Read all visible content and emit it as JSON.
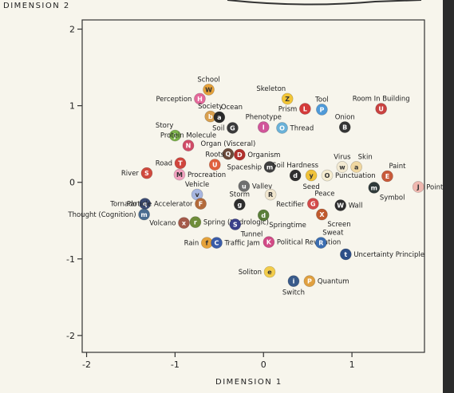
{
  "chart_data": {
    "type": "scatter",
    "xlabel": "DIMENSION 1",
    "ylabel": "DIMENSION 2",
    "xlim": [
      -2.05,
      1.82
    ],
    "ylim": [
      -2.22,
      2.12
    ],
    "x_ticks": [
      -2,
      -1,
      0,
      1
    ],
    "y_ticks": [
      -2,
      -1,
      0,
      1,
      2
    ],
    "x_tick_labels": [
      "-2",
      "-1",
      "0",
      "1"
    ],
    "y_tick_labels": [
      "-2",
      "-1",
      "0",
      "1",
      "2"
    ],
    "grid": false,
    "points": [
      {
        "label": "School",
        "marker": "W",
        "x": -0.62,
        "y": 1.21,
        "color": "#e6a23a",
        "label_pos": "above"
      },
      {
        "label": "Perception",
        "marker": "H",
        "x": -0.72,
        "y": 1.09,
        "color": "#e3689a",
        "label_pos": "left"
      },
      {
        "label": "Society",
        "marker": "b",
        "x": -0.6,
        "y": 0.86,
        "color": "#d9a04f",
        "label_pos": "above"
      },
      {
        "label": "Ocean",
        "marker": "a",
        "x": -0.5,
        "y": 0.85,
        "color": "#2a2a2a",
        "label_pos": "above-right"
      },
      {
        "label": "Skeleton",
        "marker": "Z",
        "x": 0.27,
        "y": 1.09,
        "color": "#f2c536",
        "label_pos": "above-left"
      },
      {
        "label": "Tool",
        "marker": "P",
        "x": 0.66,
        "y": 0.95,
        "color": "#4f9ad8",
        "label_pos": "above"
      },
      {
        "label": "Prism",
        "marker": "L",
        "x": 0.47,
        "y": 0.96,
        "color": "#d43a3a",
        "label_pos": "left"
      },
      {
        "label": "Room In Building",
        "marker": "U",
        "x": 1.33,
        "y": 0.96,
        "color": "#c94240",
        "label_pos": "above"
      },
      {
        "label": "Phenotype",
        "marker": "I",
        "x": 0.0,
        "y": 0.72,
        "color": "#d1559a",
        "label_pos": "above"
      },
      {
        "label": "Thread",
        "marker": "O",
        "x": 0.21,
        "y": 0.71,
        "color": "#6ab1d8",
        "label_pos": "right"
      },
      {
        "label": "Onion",
        "marker": "B",
        "x": 0.92,
        "y": 0.72,
        "color": "#353535",
        "label_pos": "above"
      },
      {
        "label": "Story",
        "marker": "j",
        "x": -1.0,
        "y": 0.61,
        "color": "#7bb04a",
        "label_pos": "above-left"
      },
      {
        "label": "Protein Molecule",
        "marker": "N",
        "x": -0.85,
        "y": 0.48,
        "color": "#d04b67",
        "label_pos": "above"
      },
      {
        "label": "Soil",
        "marker": "G",
        "x": -0.35,
        "y": 0.71,
        "color": "#3a3a3a",
        "label_pos": "left"
      },
      {
        "label": "Organ (Visceral)",
        "marker": "Q",
        "x": -0.4,
        "y": 0.37,
        "color": "#6b4a3a",
        "label_pos": "above"
      },
      {
        "label": "Organism",
        "marker": "D",
        "x": -0.27,
        "y": 0.36,
        "color": "#b0302c",
        "label_pos": "right"
      },
      {
        "label": "Road",
        "marker": "T",
        "x": -0.94,
        "y": 0.25,
        "color": "#d0463e",
        "label_pos": "left"
      },
      {
        "label": "Roots",
        "marker": "U",
        "x": -0.55,
        "y": 0.23,
        "color": "#e0603c",
        "label_pos": "above"
      },
      {
        "label": "Spaceship",
        "marker": "m",
        "x": 0.07,
        "y": 0.2,
        "color": "#3f3f3f",
        "label_pos": "left"
      },
      {
        "label": "Soil Hardness",
        "marker": "d",
        "x": 0.36,
        "y": 0.09,
        "color": "#2e2e2e",
        "label_pos": "above"
      },
      {
        "label": "Seed",
        "marker": "y",
        "x": 0.54,
        "y": 0.09,
        "color": "#f0c23a",
        "label_pos": "below"
      },
      {
        "label": "Punctuation",
        "marker": "O",
        "x": 0.72,
        "y": 0.09,
        "color": "#f5ecd0",
        "label_pos": "right"
      },
      {
        "label": "Virus",
        "marker": "w",
        "x": 0.89,
        "y": 0.2,
        "color": "#f3ead2",
        "label_pos": "above"
      },
      {
        "label": "Skin",
        "marker": "a",
        "x": 1.05,
        "y": 0.2,
        "color": "#f0d7a0",
        "label_pos": "above-right"
      },
      {
        "label": "Paint",
        "marker": "E",
        "x": 1.4,
        "y": 0.08,
        "color": "#c85a3a",
        "label_pos": "above-right"
      },
      {
        "label": "Point",
        "marker": "J",
        "x": 1.75,
        "y": -0.06,
        "color": "#f0b8b0",
        "label_pos": "right"
      },
      {
        "label": "Symbol",
        "marker": "m",
        "x": 1.25,
        "y": -0.07,
        "color": "#2f3a3a",
        "label_pos": "below-right"
      },
      {
        "label": "River",
        "marker": "S",
        "x": -1.32,
        "y": 0.12,
        "color": "#d04a3e",
        "label_pos": "left"
      },
      {
        "label": "Procreation",
        "marker": "M",
        "x": -0.95,
        "y": 0.1,
        "color": "#f2a2c0",
        "label_pos": "right"
      },
      {
        "label": "Valley",
        "marker": "u",
        "x": -0.22,
        "y": -0.05,
        "color": "#6f6f6f",
        "label_pos": "right"
      },
      {
        "label": "Vehicle",
        "marker": "v",
        "x": -0.75,
        "y": -0.16,
        "color": "#a7b6e0",
        "label_pos": "above"
      },
      {
        "label": "Tornado",
        "marker": "q",
        "x": -1.34,
        "y": -0.28,
        "color": "#3b4b73",
        "label_pos": "left"
      },
      {
        "label": "Thought (Cognition)",
        "marker": "m",
        "x": -1.35,
        "y": -0.42,
        "color": "#4a6c90",
        "label_pos": "left"
      },
      {
        "label": "Particle Accelerator",
        "marker": "F",
        "x": -0.71,
        "y": -0.28,
        "color": "#b36a3a",
        "label_pos": "left"
      },
      {
        "label": "Storm",
        "marker": "g",
        "x": -0.27,
        "y": -0.29,
        "color": "#2d2d2d",
        "label_pos": "above"
      },
      {
        "label": "Rectifier",
        "marker": "R",
        "x": 0.08,
        "y": -0.16,
        "color": "#f1e7cf",
        "label_pos": "below-right"
      },
      {
        "label": "Peace",
        "marker": "G",
        "x": 0.56,
        "y": -0.28,
        "color": "#d34a4a",
        "label_pos": "above-right"
      },
      {
        "label": "Wall",
        "marker": "W",
        "x": 0.87,
        "y": -0.3,
        "color": "#2d2d2d",
        "label_pos": "right"
      },
      {
        "label": "Springtime",
        "marker": "d",
        "x": 0.0,
        "y": -0.43,
        "color": "#5a7f3a",
        "label_pos": "below-right"
      },
      {
        "label": "Screen",
        "marker": "X",
        "x": 0.66,
        "y": -0.42,
        "color": "#c05a2e",
        "label_pos": "below-right"
      },
      {
        "label": "Volcano",
        "marker": "x",
        "x": -0.9,
        "y": -0.53,
        "color": "#a45a4a",
        "label_pos": "left"
      },
      {
        "label": "Spring (Hydrologic)",
        "marker": "r",
        "x": -0.77,
        "y": -0.52,
        "color": "#6f8d3a",
        "label_pos": "right"
      },
      {
        "label": "Tunnel",
        "marker": "S",
        "x": -0.32,
        "y": -0.55,
        "color": "#3a3f8a",
        "label_pos": "below-right"
      },
      {
        "label": "Rain",
        "marker": "f",
        "x": -0.64,
        "y": -0.79,
        "color": "#e5a23a",
        "label_pos": "left"
      },
      {
        "label": "Traffic Jam",
        "marker": "C",
        "x": -0.53,
        "y": -0.79,
        "color": "#3a5ca8",
        "label_pos": "right"
      },
      {
        "label": "Political Revolution",
        "marker": "K",
        "x": 0.06,
        "y": -0.78,
        "color": "#d24a86",
        "label_pos": "right"
      },
      {
        "label": "Sweat",
        "marker": "R",
        "x": 0.65,
        "y": -0.79,
        "color": "#3b6db0",
        "label_pos": "above-right"
      },
      {
        "label": "Uncertainty Principle",
        "marker": "t",
        "x": 0.93,
        "y": -0.94,
        "color": "#2e4f88",
        "label_pos": "right"
      },
      {
        "label": "Soliton",
        "marker": "e",
        "x": 0.07,
        "y": -1.17,
        "color": "#f2cc4a",
        "label_pos": "left"
      },
      {
        "label": "Switch",
        "marker": "i",
        "x": 0.34,
        "y": -1.29,
        "color": "#3a5b8a",
        "label_pos": "below"
      },
      {
        "label": "Quantum",
        "marker": "P",
        "x": 0.52,
        "y": -1.29,
        "color": "#e0a040",
        "label_pos": "right"
      }
    ]
  }
}
